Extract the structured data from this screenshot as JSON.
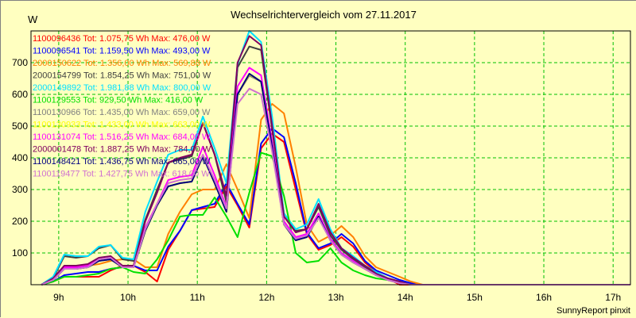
{
  "chart_data": {
    "type": "line",
    "title": "Wechselrichtervergleich vom 27.11.2017",
    "ylabel": "W",
    "footer": "SunnyReport pinxit",
    "xlim": [
      8.6,
      17.25
    ],
    "ylim": [
      0,
      800
    ],
    "xticks": [
      {
        "v": 9,
        "label": "9h"
      },
      {
        "v": 10,
        "label": "10h"
      },
      {
        "v": 11,
        "label": "11h"
      },
      {
        "v": 12,
        "label": "12h"
      },
      {
        "v": 13,
        "label": "13h"
      },
      {
        "v": 14,
        "label": "14h"
      },
      {
        "v": 15,
        "label": "15h"
      },
      {
        "v": 16,
        "label": "16h"
      },
      {
        "v": 17,
        "label": "17h"
      }
    ],
    "yticks": [
      100,
      200,
      300,
      400,
      500,
      600,
      700
    ],
    "grid": true,
    "x": [
      8.75,
      8.92,
      9.08,
      9.25,
      9.42,
      9.58,
      9.75,
      9.92,
      10.08,
      10.25,
      10.42,
      10.58,
      10.75,
      10.92,
      11.08,
      11.25,
      11.42,
      11.58,
      11.75,
      11.92,
      12.08,
      12.25,
      12.42,
      12.58,
      12.75,
      12.92,
      13.08,
      13.25,
      13.42,
      13.58,
      13.75,
      13.92,
      14.08,
      14.25,
      14.42,
      14.58,
      14.75,
      14.92,
      15.08,
      15.25,
      15.42,
      15.58,
      15.75,
      15.92,
      16.08,
      16.25,
      16.42,
      16.58,
      16.75,
      16.92,
      17.08,
      17.25
    ],
    "series": [
      {
        "name": "1100096436",
        "text": "1100096436 Tot: 1.075,75 Wh Max: 476,00 W",
        "color": "#ff0000",
        "values": [
          0,
          10,
          25,
          25,
          25,
          25,
          45,
          60,
          60,
          40,
          10,
          110,
          170,
          235,
          240,
          245,
          310,
          250,
          180,
          430,
          476,
          450,
          300,
          160,
          110,
          125,
          150,
          120,
          70,
          40,
          20,
          0,
          0,
          0,
          0,
          0,
          0,
          0,
          0,
          0,
          0,
          0,
          0,
          0,
          0,
          0,
          0,
          0,
          0,
          0,
          0,
          0
        ]
      },
      {
        "name": "1100096541",
        "text": "1100096541 Tot: 1.159,50 Wh Max: 493,00 W",
        "color": "#0000ff",
        "values": [
          0,
          10,
          30,
          35,
          40,
          40,
          50,
          55,
          60,
          45,
          45,
          120,
          170,
          235,
          245,
          255,
          320,
          255,
          190,
          445,
          493,
          465,
          320,
          165,
          115,
          130,
          160,
          130,
          75,
          45,
          30,
          15,
          5,
          0,
          0,
          0,
          0,
          0,
          0,
          0,
          0,
          0,
          0,
          0,
          0,
          0,
          0,
          0,
          0,
          0,
          0,
          0
        ]
      },
      {
        "name": "2000150622",
        "text": "2000150622 Tot: 1.356,00 Wh Max: 569,88 W",
        "color": "#ff8000",
        "values": [
          0,
          15,
          50,
          55,
          60,
          65,
          75,
          80,
          80,
          55,
          55,
          160,
          230,
          285,
          300,
          300,
          380,
          300,
          210,
          520,
          570,
          540,
          370,
          190,
          135,
          155,
          185,
          150,
          90,
          55,
          40,
          25,
          10,
          0,
          0,
          0,
          0,
          0,
          0,
          0,
          0,
          0,
          0,
          0,
          0,
          0,
          0,
          0,
          0,
          0,
          0,
          0
        ]
      },
      {
        "name": "2000154799",
        "text": "2000154799 Tot: 1.854,25 Wh Max: 751,00 W",
        "color": "#404040",
        "values": [
          0,
          20,
          90,
          85,
          90,
          115,
          125,
          80,
          75,
          205,
          300,
          385,
          395,
          405,
          510,
          410,
          260,
          685,
          751,
          740,
          490,
          225,
          170,
          175,
          245,
          155,
          110,
          80,
          55,
          30,
          20,
          10,
          0,
          0,
          0,
          0,
          0,
          0,
          0,
          0,
          0,
          0,
          0,
          0,
          0,
          0,
          0,
          0,
          0,
          0,
          0,
          0
        ]
      },
      {
        "name": "2000149892",
        "text": "2000149892 Tot: 1.981,88 Wh Max: 800,00 W",
        "color": "#00e0ff",
        "values": [
          0,
          25,
          95,
          90,
          90,
          120,
          125,
          85,
          80,
          230,
          325,
          410,
          425,
          425,
          530,
          430,
          320,
          695,
          800,
          765,
          530,
          225,
          175,
          190,
          270,
          175,
          115,
          90,
          60,
          40,
          20,
          10,
          0,
          0,
          0,
          0,
          0,
          0,
          0,
          0,
          0,
          0,
          0,
          0,
          0,
          0,
          0,
          0,
          0,
          0,
          0,
          0
        ]
      },
      {
        "name": "1100129553",
        "text": "1100129553 Tot: 929,50 Wh Max: 416,00 W",
        "color": "#00e000",
        "values": [
          0,
          10,
          25,
          25,
          30,
          35,
          50,
          55,
          40,
          35,
          80,
          140,
          215,
          220,
          220,
          275,
          215,
          150,
          290,
          416,
          405,
          280,
          100,
          70,
          75,
          115,
          70,
          45,
          30,
          20,
          15,
          5,
          0,
          0,
          0,
          0,
          0,
          0,
          0,
          0,
          0,
          0,
          0,
          0,
          0,
          0,
          0,
          0,
          0,
          0,
          0,
          0
        ]
      },
      {
        "name": "1100130966",
        "text": "1100130966 Tot: 1.435,00 Wh Max: 659,00 W",
        "color": "#808080",
        "values": [
          0,
          15,
          50,
          50,
          55,
          75,
          80,
          55,
          55,
          170,
          250,
          310,
          320,
          325,
          405,
          320,
          230,
          600,
          659,
          640,
          435,
          190,
          140,
          150,
          215,
          140,
          95,
          70,
          50,
          30,
          15,
          5,
          0,
          0,
          0,
          0,
          0,
          0,
          0,
          0,
          0,
          0,
          0,
          0,
          0,
          0,
          0,
          0,
          0,
          0,
          0,
          0
        ]
      },
      {
        "name": "1100130933",
        "text": "1100130933 Tot: 1.433,00 Wh Max: 663,00 W",
        "color": "#ffff00",
        "values": [
          0,
          15,
          50,
          50,
          55,
          75,
          80,
          55,
          55,
          170,
          250,
          310,
          320,
          325,
          405,
          320,
          230,
          600,
          663,
          640,
          435,
          190,
          140,
          150,
          215,
          140,
          95,
          70,
          50,
          30,
          15,
          5,
          0,
          0,
          0,
          0,
          0,
          0,
          0,
          0,
          0,
          0,
          0,
          0,
          0,
          0,
          0,
          0,
          0,
          0,
          0,
          0
        ]
      },
      {
        "name": "1100131074",
        "text": "1100131074 Tot: 1.516,25 Wh Max: 684,00 W",
        "color": "#ff00ff",
        "values": [
          0,
          15,
          55,
          55,
          60,
          80,
          85,
          55,
          55,
          180,
          255,
          330,
          340,
          345,
          435,
          345,
          245,
          625,
          684,
          660,
          450,
          200,
          150,
          160,
          225,
          145,
          100,
          75,
          50,
          30,
          15,
          5,
          0,
          0,
          0,
          0,
          0,
          0,
          0,
          0,
          0,
          0,
          0,
          0,
          0,
          0,
          0,
          0,
          0,
          0,
          0,
          0
        ]
      },
      {
        "name": "2000001478",
        "text": "2000001478 Tot: 1.887,25 Wh Max: 784,00 W",
        "color": "#800060",
        "values": [
          0,
          20,
          60,
          60,
          65,
          85,
          90,
          60,
          60,
          200,
          290,
          385,
          400,
          410,
          510,
          410,
          280,
          700,
          784,
          755,
          500,
          215,
          165,
          175,
          255,
          165,
          115,
          85,
          60,
          35,
          20,
          10,
          0,
          0,
          0,
          0,
          0,
          0,
          0,
          0,
          0,
          0,
          0,
          0,
          0,
          0,
          0,
          0,
          0,
          0,
          0,
          0
        ]
      },
      {
        "name": "1100148421",
        "text": "1100148421 Tot: 1.436,75 Wh Max: 665,00 W",
        "color": "#000080",
        "values": [
          0,
          15,
          50,
          50,
          55,
          75,
          80,
          55,
          55,
          170,
          250,
          310,
          320,
          325,
          405,
          320,
          230,
          600,
          665,
          640,
          435,
          190,
          140,
          150,
          215,
          140,
          95,
          70,
          50,
          30,
          15,
          5,
          0,
          0,
          0,
          0,
          0,
          0,
          0,
          0,
          0,
          0,
          0,
          0,
          0,
          0,
          0,
          0,
          0,
          0,
          0,
          0
        ]
      },
      {
        "name": "1100119477",
        "text": "1100119477 Tot: 1.427,75 Wh Max: 618,00 W",
        "color": "#d070d0",
        "values": [
          0,
          15,
          50,
          50,
          55,
          80,
          85,
          55,
          55,
          175,
          255,
          320,
          330,
          335,
          410,
          330,
          240,
          570,
          618,
          600,
          420,
          190,
          145,
          155,
          210,
          140,
          95,
          70,
          50,
          30,
          15,
          5,
          0,
          0,
          0,
          0,
          0,
          0,
          0,
          0,
          0,
          0,
          0,
          0,
          0,
          0,
          0,
          0,
          0,
          0,
          0,
          0
        ]
      }
    ]
  }
}
